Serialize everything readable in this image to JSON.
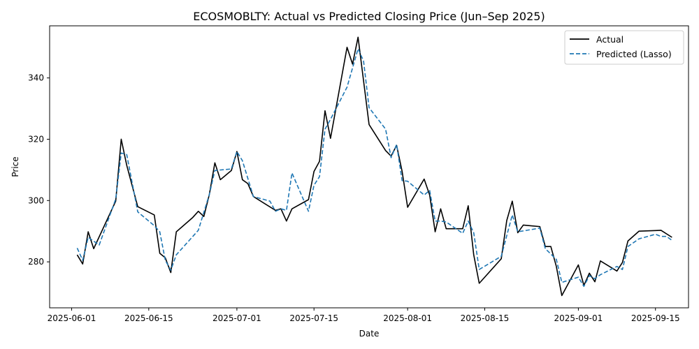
{
  "chart_data": {
    "type": "line",
    "title": "ECOSMOBLTY: Actual vs Predicted Closing Price (Jun–Sep 2025)",
    "xlabel": "Date",
    "ylabel": "Price",
    "xlim": [
      "2025-05-28",
      "2025-09-21"
    ],
    "ylim": [
      265,
      357
    ],
    "x_ticks": [
      "2025-06-01",
      "2025-06-15",
      "2025-07-01",
      "2025-07-15",
      "2025-08-01",
      "2025-08-15",
      "2025-09-01",
      "2025-09-15"
    ],
    "y_ticks": [
      280,
      300,
      320,
      340
    ],
    "grid": false,
    "legend_position": "top-right",
    "series": [
      {
        "name": "Actual",
        "color": "#000000",
        "style": "solid",
        "points": [
          [
            "2025-06-02",
            282.3
          ],
          [
            "2025-06-03",
            279.3
          ],
          [
            "2025-06-04",
            289.8
          ],
          [
            "2025-06-05",
            284.3
          ],
          [
            "2025-06-09",
            299.8
          ],
          [
            "2025-06-10",
            320.0
          ],
          [
            "2025-06-11",
            311.5
          ],
          [
            "2025-06-13",
            298.0
          ],
          [
            "2025-06-16",
            295.3
          ],
          [
            "2025-06-17",
            282.8
          ],
          [
            "2025-06-18",
            281.3
          ],
          [
            "2025-06-19",
            276.5
          ],
          [
            "2025-06-20",
            289.8
          ],
          [
            "2025-06-23",
            294.5
          ],
          [
            "2025-06-24",
            296.5
          ],
          [
            "2025-06-25",
            294.8
          ],
          [
            "2025-06-26",
            302.0
          ],
          [
            "2025-06-27",
            312.3
          ],
          [
            "2025-06-28",
            306.8
          ],
          [
            "2025-06-30",
            309.8
          ],
          [
            "2025-07-01",
            316.0
          ],
          [
            "2025-07-02",
            306.8
          ],
          [
            "2025-07-03",
            305.5
          ],
          [
            "2025-07-04",
            301.3
          ],
          [
            "2025-07-08",
            296.8
          ],
          [
            "2025-07-09",
            297.3
          ],
          [
            "2025-07-10",
            293.3
          ],
          [
            "2025-07-11",
            297.3
          ],
          [
            "2025-07-14",
            300.3
          ],
          [
            "2025-07-15",
            309.5
          ],
          [
            "2025-07-16",
            312.8
          ],
          [
            "2025-07-17",
            329.3
          ],
          [
            "2025-07-18",
            320.3
          ],
          [
            "2025-07-21",
            350.0
          ],
          [
            "2025-07-22",
            344.5
          ],
          [
            "2025-07-23",
            353.3
          ],
          [
            "2025-07-25",
            324.8
          ],
          [
            "2025-07-28",
            316.3
          ],
          [
            "2025-07-29",
            314.5
          ],
          [
            "2025-07-30",
            318.0
          ],
          [
            "2025-07-31",
            309.5
          ],
          [
            "2025-08-01",
            297.8
          ],
          [
            "2025-08-04",
            307.0
          ],
          [
            "2025-08-05",
            301.8
          ],
          [
            "2025-08-06",
            289.8
          ],
          [
            "2025-08-07",
            297.3
          ],
          [
            "2025-08-08",
            290.8
          ],
          [
            "2025-08-11",
            290.8
          ],
          [
            "2025-08-12",
            298.3
          ],
          [
            "2025-08-13",
            282.3
          ],
          [
            "2025-08-14",
            273.0
          ],
          [
            "2025-08-18",
            281.0
          ],
          [
            "2025-08-19",
            293.5
          ],
          [
            "2025-08-20",
            299.8
          ],
          [
            "2025-08-21",
            289.5
          ],
          [
            "2025-08-22",
            292.0
          ],
          [
            "2025-08-25",
            291.5
          ],
          [
            "2025-08-26",
            285.0
          ],
          [
            "2025-08-27",
            285.0
          ],
          [
            "2025-08-28",
            278.5
          ],
          [
            "2025-08-29",
            269.0
          ],
          [
            "2025-09-01",
            279.0
          ],
          [
            "2025-09-02",
            272.3
          ],
          [
            "2025-09-03",
            276.3
          ],
          [
            "2025-09-04",
            273.5
          ],
          [
            "2025-09-05",
            280.3
          ],
          [
            "2025-09-08",
            277.0
          ],
          [
            "2025-09-09",
            279.8
          ],
          [
            "2025-09-10",
            286.8
          ],
          [
            "2025-09-12",
            290.0
          ],
          [
            "2025-09-15",
            290.2
          ],
          [
            "2025-09-16",
            290.3
          ],
          [
            "2025-09-18",
            288.0
          ]
        ]
      },
      {
        "name": "Predicted (Lasso)",
        "color": "#1f77b4",
        "style": "dashed",
        "points": [
          [
            "2025-06-02",
            284.5
          ],
          [
            "2025-06-03",
            280.5
          ],
          [
            "2025-06-04",
            288.0
          ],
          [
            "2025-06-06",
            285.5
          ],
          [
            "2025-06-09",
            300.5
          ],
          [
            "2025-06-10",
            315.5
          ],
          [
            "2025-06-11",
            315.0
          ],
          [
            "2025-06-13",
            296.3
          ],
          [
            "2025-06-16",
            291.8
          ],
          [
            "2025-06-17",
            289.8
          ],
          [
            "2025-06-18",
            280.5
          ],
          [
            "2025-06-19",
            277.3
          ],
          [
            "2025-06-20",
            282.3
          ],
          [
            "2025-06-24",
            290.3
          ],
          [
            "2025-06-26",
            302.0
          ],
          [
            "2025-06-27",
            309.8
          ],
          [
            "2025-06-30",
            310.3
          ],
          [
            "2025-07-01",
            316.0
          ],
          [
            "2025-07-02",
            313.0
          ],
          [
            "2025-07-04",
            301.3
          ],
          [
            "2025-07-07",
            299.8
          ],
          [
            "2025-07-08",
            296.5
          ],
          [
            "2025-07-09",
            297.3
          ],
          [
            "2025-07-10",
            296.8
          ],
          [
            "2025-07-11",
            309.0
          ],
          [
            "2025-07-14",
            296.5
          ],
          [
            "2025-07-15",
            305.0
          ],
          [
            "2025-07-16",
            307.8
          ],
          [
            "2025-07-17",
            323.3
          ],
          [
            "2025-07-18",
            326.5
          ],
          [
            "2025-07-21",
            337.0
          ],
          [
            "2025-07-23",
            349.5
          ],
          [
            "2025-07-24",
            345.5
          ],
          [
            "2025-07-25",
            330.3
          ],
          [
            "2025-07-28",
            323.3
          ],
          [
            "2025-07-29",
            314.0
          ],
          [
            "2025-07-30",
            318.3
          ],
          [
            "2025-07-31",
            306.5
          ],
          [
            "2025-08-01",
            306.3
          ],
          [
            "2025-08-04",
            301.8
          ],
          [
            "2025-08-05",
            303.3
          ],
          [
            "2025-08-06",
            293.3
          ],
          [
            "2025-08-07",
            293.3
          ],
          [
            "2025-08-08",
            293.0
          ],
          [
            "2025-08-11",
            289.3
          ],
          [
            "2025-08-12",
            293.3
          ],
          [
            "2025-08-13",
            289.5
          ],
          [
            "2025-08-14",
            277.5
          ],
          [
            "2025-08-18",
            281.8
          ],
          [
            "2025-08-20",
            295.3
          ],
          [
            "2025-08-21",
            289.8
          ],
          [
            "2025-08-25",
            291.0
          ],
          [
            "2025-08-26",
            284.3
          ],
          [
            "2025-08-28",
            280.8
          ],
          [
            "2025-08-29",
            273.3
          ],
          [
            "2025-09-01",
            275.0
          ],
          [
            "2025-09-02",
            272.0
          ],
          [
            "2025-09-03",
            275.5
          ],
          [
            "2025-09-04",
            274.5
          ],
          [
            "2025-09-05",
            275.8
          ],
          [
            "2025-09-08",
            278.5
          ],
          [
            "2025-09-09",
            277.5
          ],
          [
            "2025-09-10",
            285.0
          ],
          [
            "2025-09-12",
            287.5
          ],
          [
            "2025-09-15",
            289.0
          ],
          [
            "2025-09-16",
            288.3
          ],
          [
            "2025-09-17",
            288.3
          ],
          [
            "2025-09-18",
            287.0
          ]
        ]
      }
    ]
  }
}
